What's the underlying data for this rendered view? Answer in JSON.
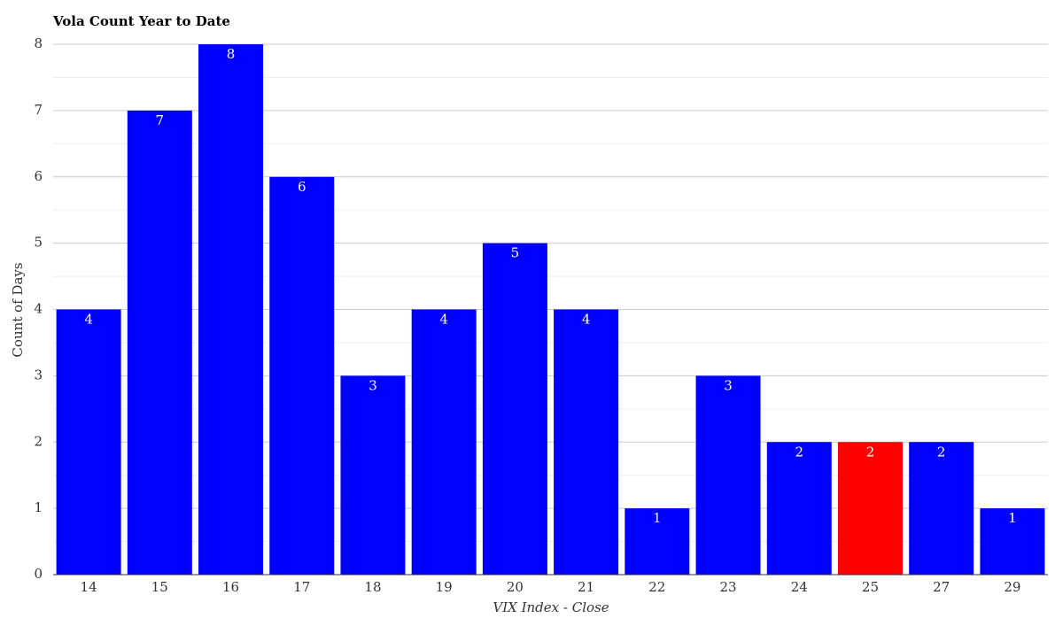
{
  "chart_data": {
    "type": "bar",
    "title": "Vola Count Year to Date",
    "x_label": "VIX Index - Close",
    "y_label": "Count of Days",
    "categories": [
      "14",
      "15",
      "16",
      "17",
      "18",
      "19",
      "20",
      "21",
      "22",
      "23",
      "24",
      "25",
      "27",
      "29"
    ],
    "values": [
      4,
      7,
      8,
      6,
      3,
      4,
      5,
      4,
      1,
      3,
      2,
      2,
      2,
      1
    ],
    "colors": [
      "#0000ff",
      "#0000ff",
      "#0000ff",
      "#0000ff",
      "#0000ff",
      "#0000ff",
      "#0000ff",
      "#0000ff",
      "#0000ff",
      "#0000ff",
      "#0000ff",
      "#ff0000",
      "#0000ff",
      "#0000ff"
    ],
    "ylim": [
      0,
      8
    ],
    "yticks": [
      0,
      1,
      2,
      3,
      4,
      5,
      6,
      7,
      8
    ],
    "minor_yticks": [
      0.5,
      1.5,
      2.5,
      3.5,
      4.5,
      5.5,
      6.5,
      7.5
    ],
    "grid": true,
    "data_labels": true
  }
}
